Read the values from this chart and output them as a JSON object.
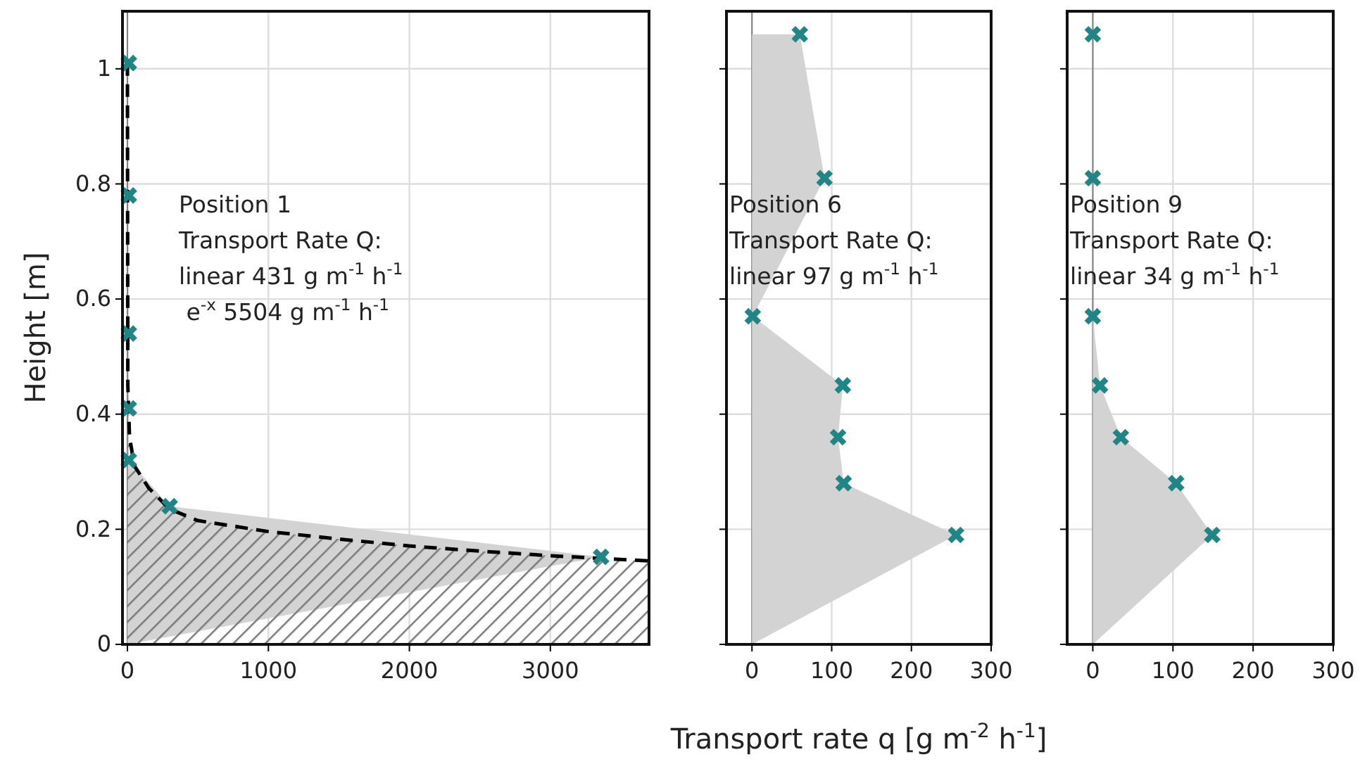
{
  "chart_data": [
    {
      "type": "scatter",
      "ylabel": "Height [m]",
      "xlim": [
        -35,
        3700
      ],
      "xticks": [
        0,
        1000,
        2000,
        3000
      ],
      "ylim": [
        0,
        1.1
      ],
      "yticks": [
        0,
        0.2,
        0.4,
        0.6,
        0.8,
        1
      ],
      "grid": true,
      "annotations": [
        "Position 1",
        "Transport Rate Q:",
        "linear 431 g m$^{-1}$ h$^{-1}$",
        " e$^{-x}$ 5504 g m$^{-1}$ h$^{-1}$"
      ],
      "ref_lines": [
        {
          "axis": "x",
          "value": 0,
          "color": "#808080"
        }
      ],
      "series": [
        {
          "type": "area",
          "color": "#d3d3d3",
          "x": [
            0,
            10,
            10,
            10,
            10,
            10,
            300,
            3360
          ],
          "values": [
            0,
            1.01,
            0.78,
            0.54,
            0.41,
            0.32,
            0.24,
            0.152
          ]
        },
        {
          "type": "area",
          "line_style": "dashed",
          "color": "#000000",
          "x": [
            0,
            3,
            15,
            50,
            150,
            300,
            500,
            1000,
            1500,
            2000,
            2500,
            3000,
            3700
          ],
          "values": [
            1.01,
            0.45,
            0.36,
            0.31,
            0.272,
            0.235,
            0.215,
            0.196,
            0.183,
            0.171,
            0.162,
            0.154,
            0.145
          ]
        },
        {
          "marker": "cross",
          "color": "#1f8585",
          "x": [
            10,
            10,
            10,
            10,
            10,
            300,
            3360
          ],
          "values": [
            1.01,
            0.78,
            0.54,
            0.41,
            0.32,
            0.24,
            0.152
          ]
        }
      ]
    },
    {
      "type": "scatter",
      "xlabel": "Transport rate q [g m$^{-2}$ h$^{-1}$]",
      "xlim": [
        -32,
        300
      ],
      "xticks": [
        0,
        100,
        200,
        300
      ],
      "ylim": [
        0,
        1.1
      ],
      "yticks": [
        0,
        0.2,
        0.4,
        0.6,
        0.8,
        1
      ],
      "grid": true,
      "tick_labels": "x",
      "annotations": [
        "Position 6",
        "Transport Rate Q:",
        "linear 97 g m$^{-1}$ h$^{-1}$"
      ],
      "ref_lines": [
        {
          "axis": "x",
          "value": 0,
          "color": "#808080"
        }
      ],
      "series": [
        {
          "type": "area",
          "color": "#d3d3d3",
          "x": [
            0,
            60,
            91,
            1,
            114,
            108,
            115,
            256,
            0
          ],
          "values": [
            1.06,
            1.06,
            0.81,
            0.57,
            0.45,
            0.36,
            0.28,
            0.19,
            0
          ]
        },
        {
          "marker": "cross",
          "color": "#1f8585",
          "x": [
            60,
            91,
            1,
            114,
            108,
            115,
            256
          ],
          "values": [
            1.06,
            0.81,
            0.57,
            0.45,
            0.36,
            0.28,
            0.19
          ]
        }
      ]
    },
    {
      "type": "scatter",
      "xlim": [
        -32,
        300
      ],
      "xticks": [
        0,
        100,
        200,
        300
      ],
      "ylim": [
        0,
        1.1
      ],
      "yticks": [
        0,
        0.2,
        0.4,
        0.6,
        0.8,
        1
      ],
      "grid": true,
      "tick_labels": "x",
      "annotations": [
        "Position 9",
        "Transport Rate Q:",
        "linear 34 g m$^{-1}$ h$^{-1}$"
      ],
      "ref_lines": [
        {
          "axis": "x",
          "value": 0,
          "color": "#808080"
        }
      ],
      "series": [
        {
          "type": "area",
          "color": "#d3d3d3",
          "x": [
            0,
            0,
            0,
            9,
            35,
            104,
            149,
            0
          ],
          "values": [
            1.06,
            0.81,
            0.57,
            0.45,
            0.36,
            0.28,
            0.19,
            0
          ]
        },
        {
          "marker": "cross",
          "color": "#1f8585",
          "x": [
            0,
            0,
            0,
            9,
            35,
            104,
            149
          ],
          "values": [
            1.06,
            0.81,
            0.57,
            0.45,
            0.36,
            0.28,
            0.19
          ]
        }
      ]
    }
  ]
}
